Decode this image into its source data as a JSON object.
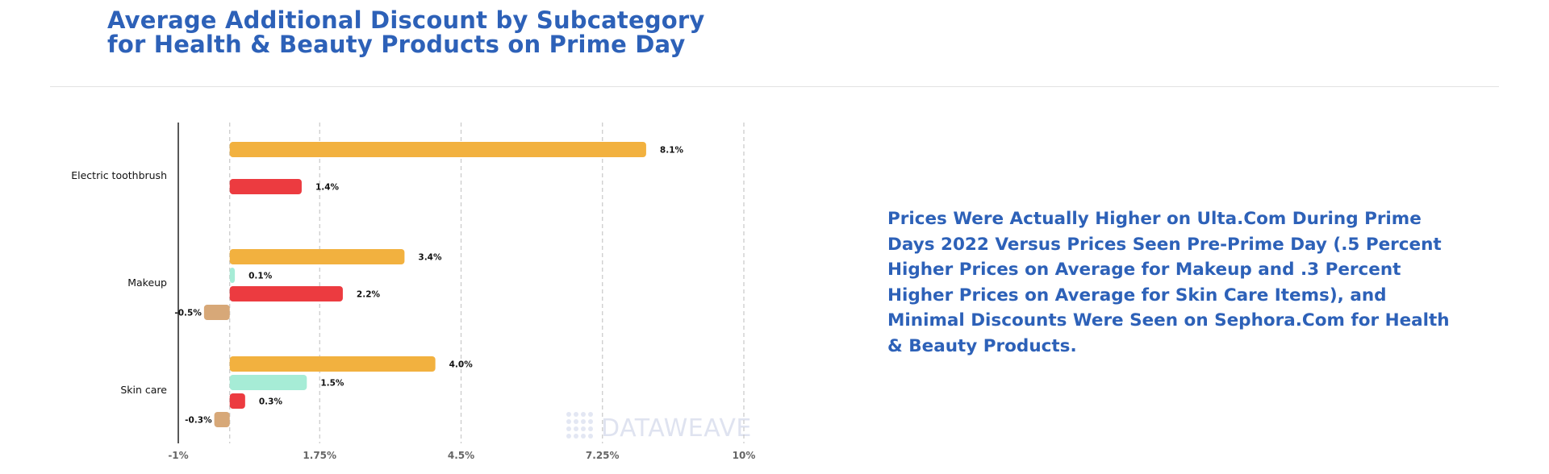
{
  "header": {
    "title_line1": "Average Additional Discount by Subcategory",
    "title_line2": "for Health & Beauty Products on Prime Day"
  },
  "annotation": "Prices Were Actually Higher on Ulta.Com During Prime Days 2022 Versus Prices Seen Pre-Prime Day (.5 Percent Higher Prices on Average for Makeup and .3 Percent Higher Prices on Average for Skin Care Items), and Minimal Discounts Were Seen on Sephora.Com for Health & Beauty Products.",
  "watermark": "DATAWEAVE",
  "colors": {
    "title": "#2d61b8",
    "series_orange": "#f2b13f",
    "series_mint": "#a6ecd6",
    "series_red": "#ec3b40",
    "series_tan": "#d7a878",
    "gridline": "#c8c8c8",
    "axis": "#222222"
  },
  "chart_data": {
    "type": "bar",
    "orientation": "horizontal",
    "categories": [
      "Electric toothbrush",
      "Makeup",
      "Skin care"
    ],
    "series": [
      {
        "color": "#f2b13f",
        "values": [
          8.1,
          3.4,
          4.0
        ],
        "labels": [
          "8.1%",
          "3.4%",
          "4.0%"
        ]
      },
      {
        "color": "#a6ecd6",
        "values": [
          null,
          0.1,
          1.5
        ],
        "labels": [
          "",
          "0.1%",
          "1.5%"
        ]
      },
      {
        "color": "#ec3b40",
        "values": [
          1.4,
          2.2,
          0.3
        ],
        "labels": [
          "1.4%",
          "2.2%",
          "0.3%"
        ]
      },
      {
        "color": "#d7a878",
        "values": [
          null,
          -0.5,
          -0.3
        ],
        "labels": [
          "",
          "-0.5%",
          "-0.3%"
        ]
      }
    ],
    "xlim": [
      -1,
      10
    ],
    "xticks": [
      -1,
      1.75,
      4.5,
      7.25,
      10
    ],
    "xtick_labels": [
      "-1%",
      "1.75%",
      "4.5%",
      "7.25%",
      "10%"
    ],
    "gridlines_at": [
      0,
      1.75,
      4.5,
      7.25,
      10
    ],
    "grid": true,
    "legend": "none"
  }
}
